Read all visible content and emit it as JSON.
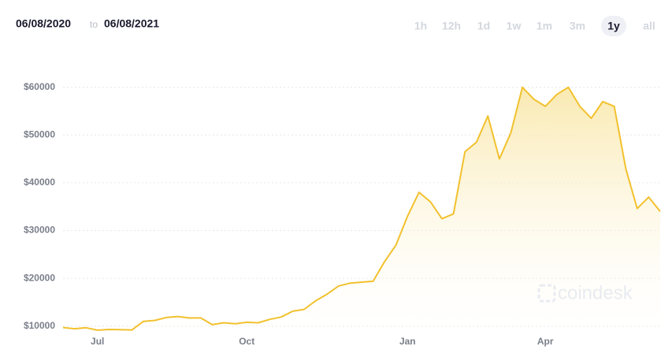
{
  "header": {
    "from": "06/08/2020",
    "separator": "to",
    "to": "06/08/2021"
  },
  "ranges": [
    "1h",
    "12h",
    "1d",
    "1w",
    "1m",
    "3m",
    "1y",
    "all"
  ],
  "active_range": "1y",
  "chart_data": {
    "type": "area",
    "watermark": "coindesk",
    "color": "#f2c12e",
    "categories": [
      null,
      null,
      null,
      "Jul",
      null,
      null,
      null,
      null,
      null,
      null,
      null,
      null,
      null,
      null,
      null,
      null,
      "Oct",
      null,
      null,
      null,
      null,
      null,
      null,
      null,
      null,
      null,
      null,
      null,
      null,
      null,
      "Jan",
      null,
      null,
      null,
      null,
      null,
      null,
      null,
      null,
      null,
      null,
      null,
      "Apr",
      null,
      null,
      null,
      null,
      null,
      null,
      null,
      null,
      null,
      null
    ],
    "values": [
      9700,
      9450,
      9650,
      9150,
      9300,
      9250,
      9200,
      11000,
      11200,
      11800,
      12000,
      11700,
      11700,
      10300,
      10700,
      10500,
      10800,
      10700,
      11400,
      11900,
      13100,
      13500,
      15300,
      16700,
      18400,
      19000,
      19200,
      19400,
      23500,
      27000,
      33000,
      38000,
      36000,
      32500,
      33500,
      46500,
      48500,
      54000,
      45000,
      50500,
      60000,
      57500,
      56000,
      58500,
      60000,
      56000,
      53500,
      57000,
      56000,
      43000,
      34600,
      37000,
      34000
    ],
    "ylim": [
      8800,
      65000
    ],
    "yticks": [
      {
        "value": 10000,
        "label": "$10000"
      },
      {
        "value": 20000,
        "label": "$20000"
      },
      {
        "value": 30000,
        "label": "$30000"
      },
      {
        "value": 40000,
        "label": "$40000"
      },
      {
        "value": 50000,
        "label": "$50000"
      },
      {
        "value": 60000,
        "label": "$60000"
      }
    ],
    "grid": true
  }
}
